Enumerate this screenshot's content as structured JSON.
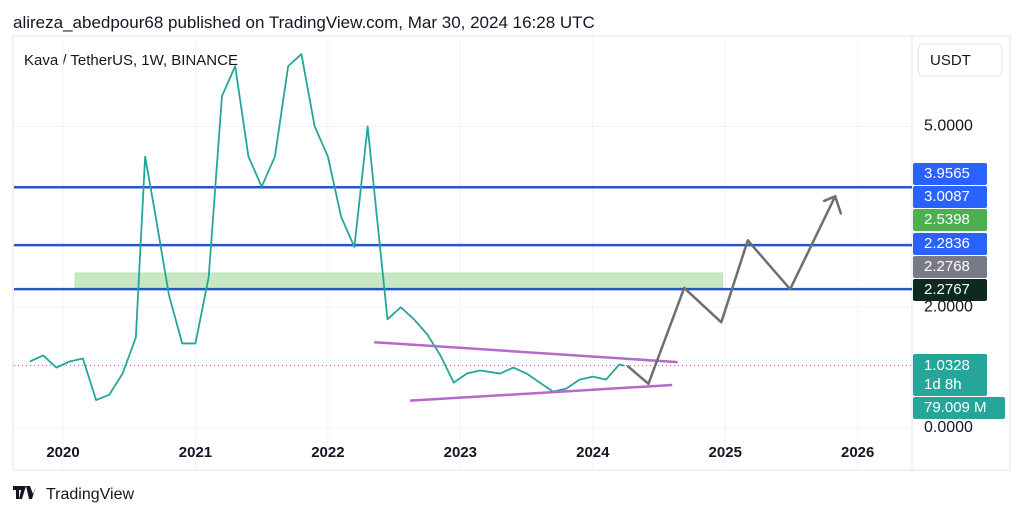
{
  "header": "alireza_abedpour68 published on TradingView.com, Mar 30, 2024 16:28 UTC",
  "footer": "TradingView",
  "chart_data": {
    "type": "line",
    "title": "Kava / TetherUS, 1W, BINANCE",
    "currency": "USDT",
    "xlim": [
      2019.63,
      2026.41
    ],
    "xticks": [
      2020,
      2021,
      2022,
      2023,
      2024,
      2025,
      2026
    ],
    "ylim": [
      -0.7,
      6.5
    ],
    "yticks": [
      {
        "value": 0,
        "label": "0.0000"
      },
      {
        "value": 2,
        "label": "2.0000"
      },
      {
        "value": 5,
        "label": "5.0000"
      }
    ],
    "grid": true,
    "series": [
      {
        "name": "KAVAUSDT",
        "color": "#26a69a",
        "x": [
          2019.75,
          2019.85,
          2019.95,
          2020.05,
          2020.15,
          2020.25,
          2020.35,
          2020.45,
          2020.55,
          2020.62,
          2020.7,
          2020.8,
          2020.9,
          2021.0,
          2021.1,
          2021.2,
          2021.3,
          2021.4,
          2021.5,
          2021.6,
          2021.7,
          2021.8,
          2021.9,
          2022.0,
          2022.1,
          2022.2,
          2022.3,
          2022.37,
          2022.45,
          2022.55,
          2022.65,
          2022.75,
          2022.85,
          2022.95,
          2023.05,
          2023.15,
          2023.3,
          2023.4,
          2023.5,
          2023.6,
          2023.7,
          2023.8,
          2023.9,
          2024.0,
          2024.1,
          2024.2,
          2024.24
        ],
        "values": [
          1.1,
          1.2,
          1.0,
          1.1,
          1.15,
          0.46,
          0.55,
          0.9,
          1.5,
          4.5,
          3.5,
          2.2,
          1.4,
          1.4,
          2.5,
          5.5,
          6.0,
          4.5,
          4.0,
          4.5,
          6.0,
          6.2,
          5.0,
          4.5,
          3.5,
          3.0,
          5.0,
          3.5,
          1.8,
          2.0,
          1.8,
          1.55,
          1.2,
          0.75,
          0.9,
          0.95,
          0.9,
          1.0,
          0.9,
          0.75,
          0.6,
          0.65,
          0.8,
          0.85,
          0.8,
          1.05,
          1.03
        ]
      }
    ],
    "levels": [
      {
        "value": 3.99,
        "color": "#2855c8"
      },
      {
        "value": 3.03,
        "color": "#2855c8"
      },
      {
        "value": 2.3,
        "color": "#2855c8"
      }
    ],
    "zone": {
      "x": [
        2020.09,
        2024.98
      ],
      "values": [
        2.3,
        2.57
      ],
      "color": "#c8e8c4"
    },
    "trendlines": [
      {
        "x": [
          2022.35,
          2024.64
        ],
        "values": [
          1.42,
          1.09
        ],
        "color": "#b36ac8"
      },
      {
        "x": [
          2022.62,
          2024.6
        ],
        "values": [
          0.45,
          0.71
        ],
        "color": "#b36ac8"
      }
    ],
    "projection": {
      "color": "#6f6f6f",
      "x": [
        2024.26,
        2024.42,
        2024.69,
        2024.97,
        2025.17,
        2025.49,
        2025.83
      ],
      "values": [
        1.03,
        0.73,
        2.32,
        1.75,
        3.11,
        2.3,
        3.84
      ]
    },
    "price_labels": [
      {
        "value": 3.9565,
        "color": "#2962ff"
      },
      {
        "value": 3.0087,
        "color": "#2962ff"
      },
      {
        "value": 2.5398,
        "color": "#4caf50"
      },
      {
        "value": 2.2836,
        "color": "#2962ff"
      },
      {
        "value": 2.2768,
        "color": "#787b86"
      },
      {
        "value": 2.2767,
        "color": "#0e2a20"
      }
    ],
    "last_price": {
      "value": 1.0328,
      "countdown": "1d 8h",
      "volume": "79.009 M",
      "color": "#26a69a"
    }
  }
}
